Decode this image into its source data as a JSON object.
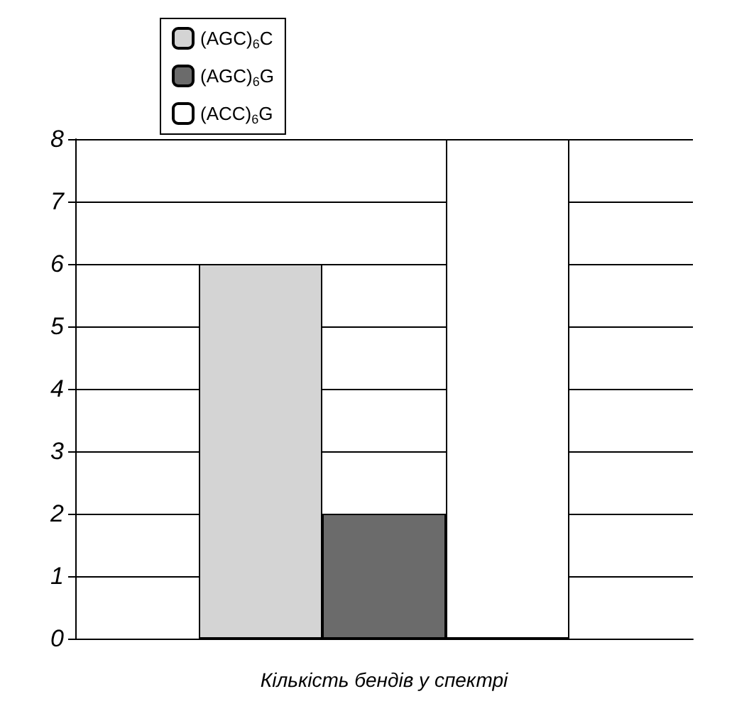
{
  "chart_data": {
    "type": "bar",
    "xlabel": "Кількість бендів у спектрі",
    "categories": [
      null
    ],
    "series": [
      {
        "name": "(AGC)$_{6}$C",
        "color": "#d4d4d4",
        "values": [
          6
        ]
      },
      {
        "name": "(AGC)$_{6}$G",
        "color": "#6b6b6b",
        "values": [
          2
        ]
      },
      {
        "name": "(ACC)$_{6}$G",
        "color": "#ffffff",
        "values": [
          8
        ]
      }
    ],
    "ylim": [
      0,
      8
    ],
    "yticks": [
      0,
      1,
      2,
      3,
      4,
      5,
      6,
      7,
      8
    ],
    "grid": "y",
    "legend": "top"
  }
}
